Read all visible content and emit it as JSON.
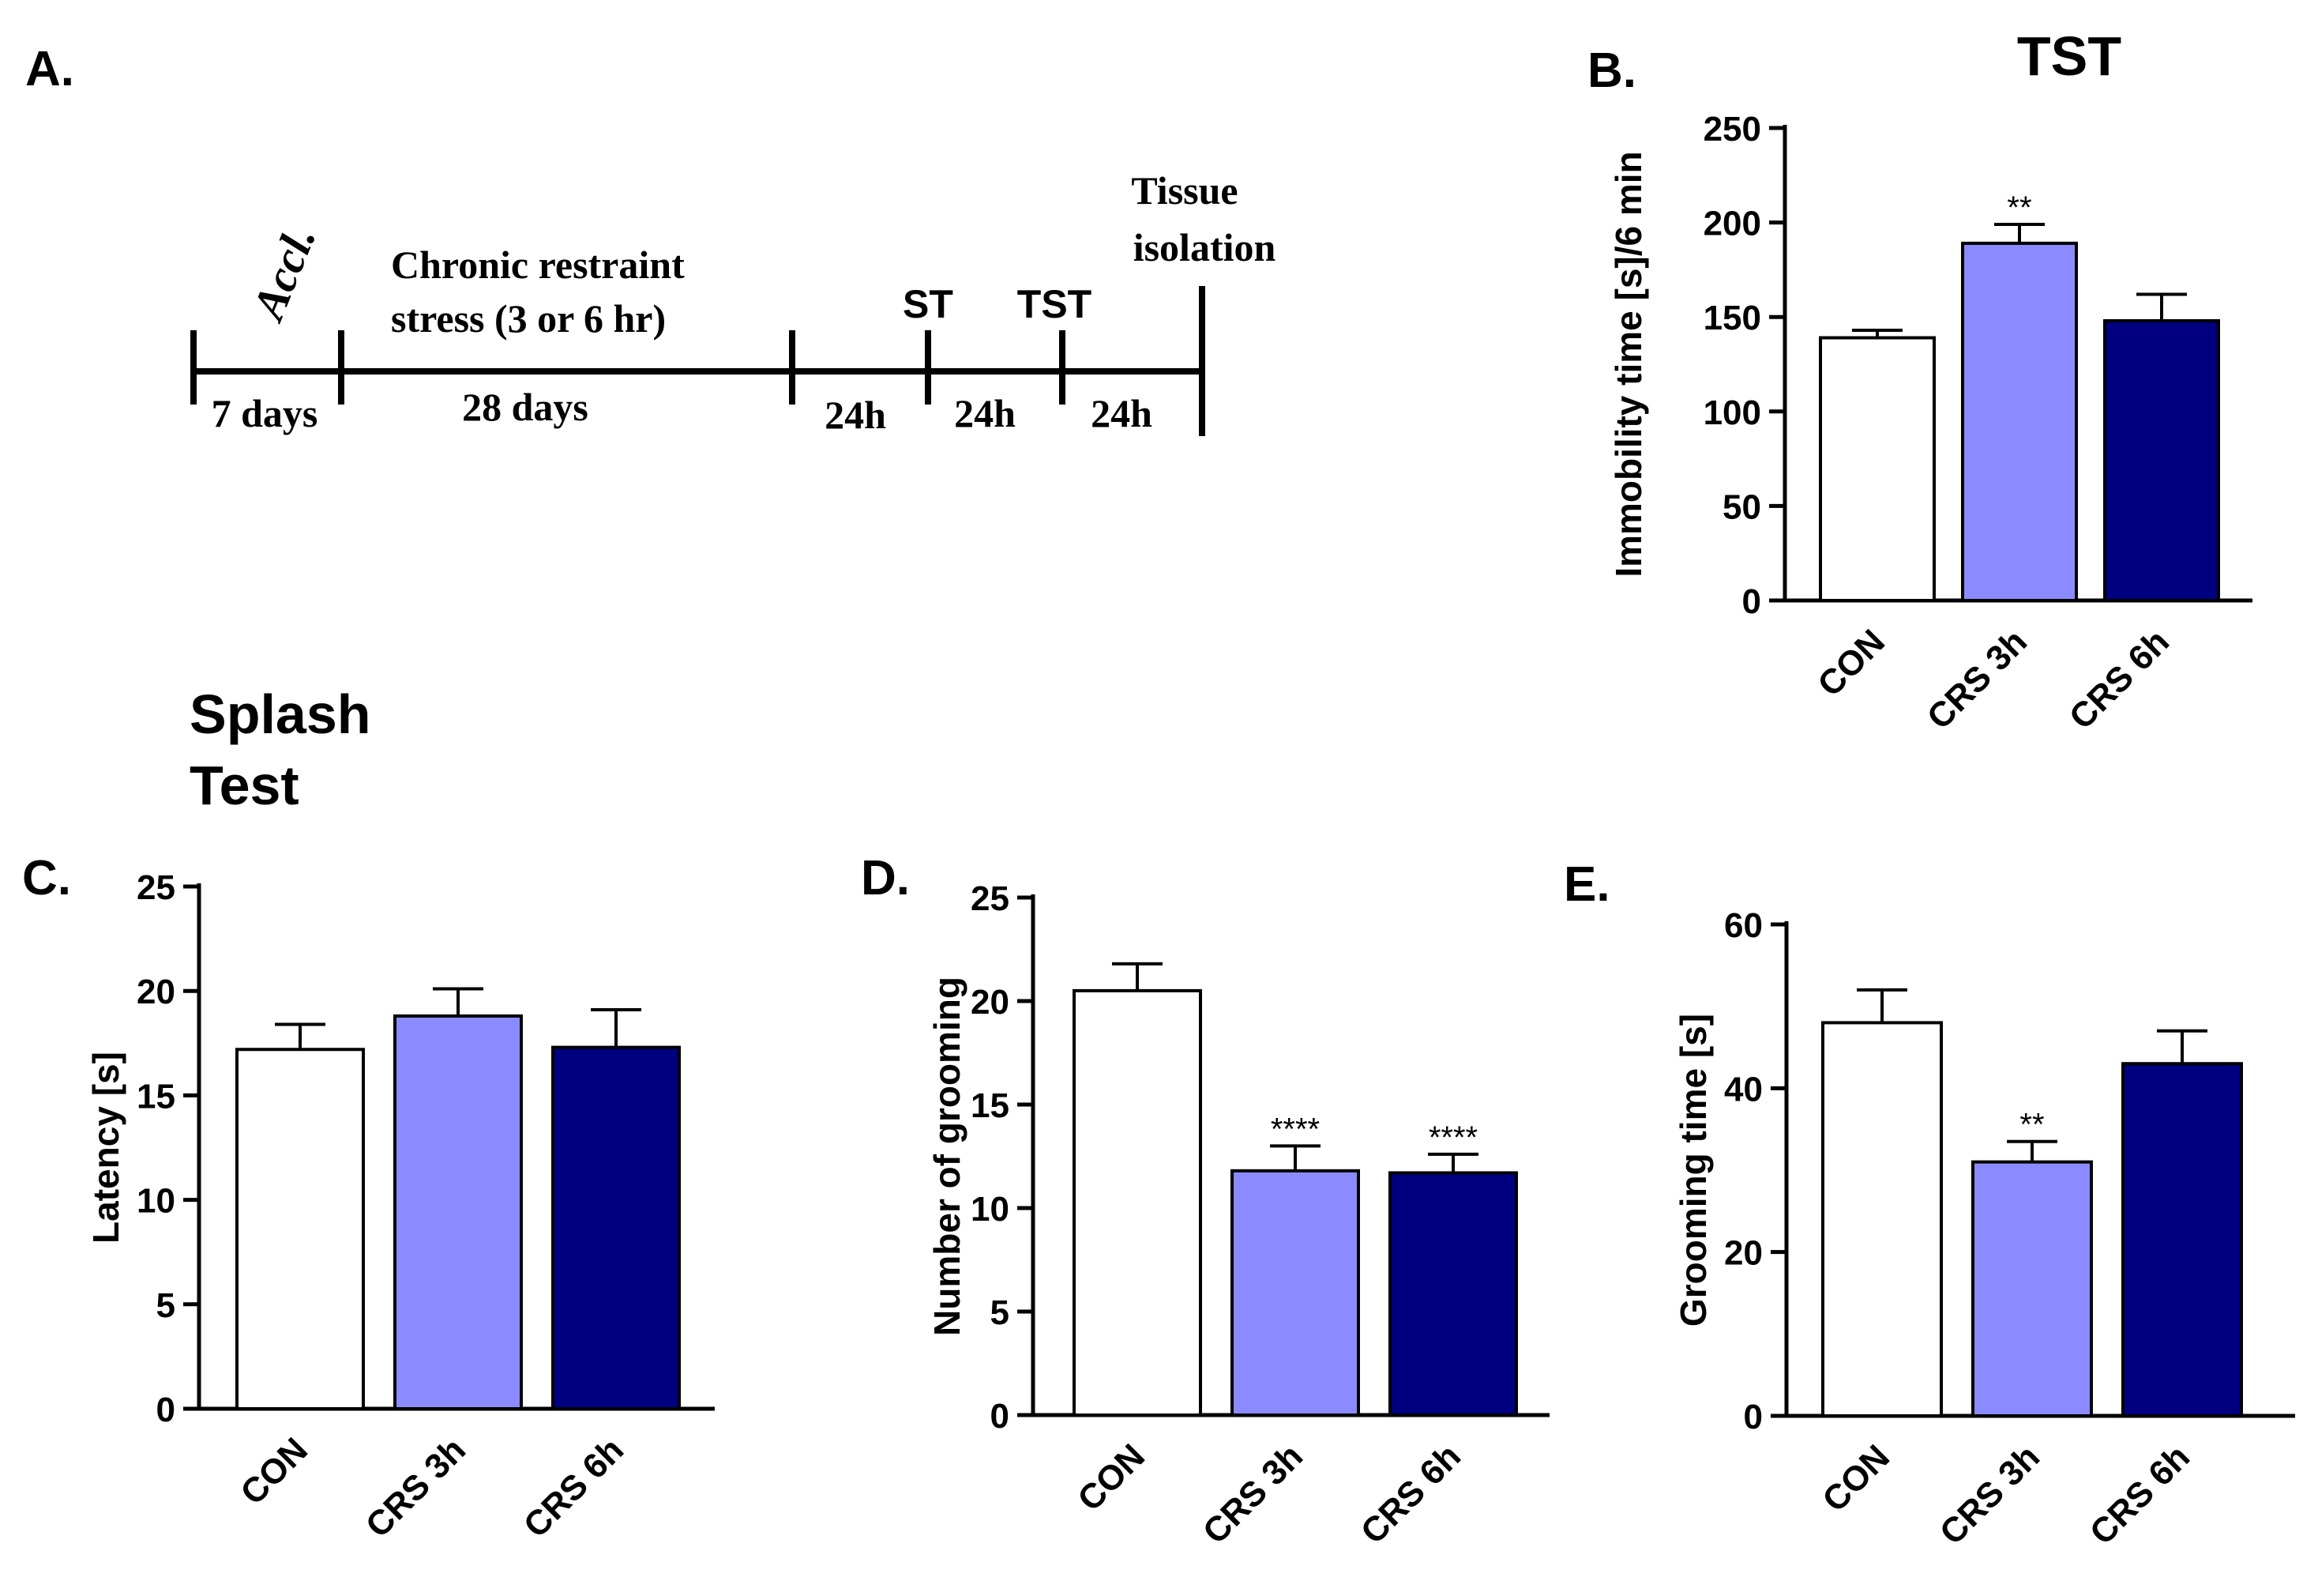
{
  "figure": {
    "panel_a": {
      "label": "A.",
      "acclimation": "Accl.",
      "crs_line1": "Chronic restraint",
      "crs_line2": "stress (3 or 6 hr)",
      "st": "ST",
      "tst": "TST",
      "tissue_line1": "Tissue",
      "tissue_line2": "isolation",
      "durations": [
        "7 days",
        "28 days",
        "24h",
        "24h",
        "24h"
      ]
    },
    "splash_title_line1": "Splash",
    "splash_title_line2": "Test"
  },
  "colors": {
    "CON": "#ffffff",
    "CRS 3h": "#8b8bff",
    "CRS 6h": "#000080",
    "axis": "#000000"
  },
  "chart_data": [
    {
      "panel": "B.",
      "type": "bar",
      "title": "TST",
      "categories": [
        "CON",
        "CRS 3h",
        "CRS 6h"
      ],
      "values": [
        139,
        189,
        148
      ],
      "errors": [
        4,
        10,
        14
      ],
      "significance": [
        "",
        "**",
        ""
      ],
      "ylabel": "Immobility time [s]/6 min",
      "ylim": [
        0,
        250
      ],
      "yticks": [
        0,
        50,
        100,
        150,
        200,
        250
      ]
    },
    {
      "panel": "C.",
      "type": "bar",
      "title": "",
      "categories": [
        "CON",
        "CRS 3h",
        "CRS 6h"
      ],
      "values": [
        17.2,
        18.8,
        17.3
      ],
      "errors": [
        1.2,
        1.3,
        1.8
      ],
      "significance": [
        "",
        "",
        ""
      ],
      "ylabel": "Latency [s]",
      "ylim": [
        0,
        25
      ],
      "yticks": [
        0,
        5,
        10,
        15,
        20,
        25
      ]
    },
    {
      "panel": "D.",
      "type": "bar",
      "title": "",
      "categories": [
        "CON",
        "CRS 3h",
        "CRS 6h"
      ],
      "values": [
        20.5,
        11.8,
        11.7
      ],
      "errors": [
        1.3,
        1.2,
        0.9
      ],
      "significance": [
        "",
        "****",
        "****"
      ],
      "ylabel": "Number of grooming",
      "ylim": [
        0,
        25
      ],
      "yticks": [
        0,
        5,
        10,
        15,
        20,
        25
      ]
    },
    {
      "panel": "E.",
      "type": "bar",
      "title": "",
      "categories": [
        "CON",
        "CRS 3h",
        "CRS 6h"
      ],
      "values": [
        48,
        31,
        43
      ],
      "errors": [
        4,
        2.5,
        4
      ],
      "significance": [
        "",
        "**",
        ""
      ],
      "ylabel": "Grooming time [s]",
      "ylim": [
        0,
        60
      ],
      "yticks": [
        0,
        20,
        40,
        60
      ]
    }
  ]
}
